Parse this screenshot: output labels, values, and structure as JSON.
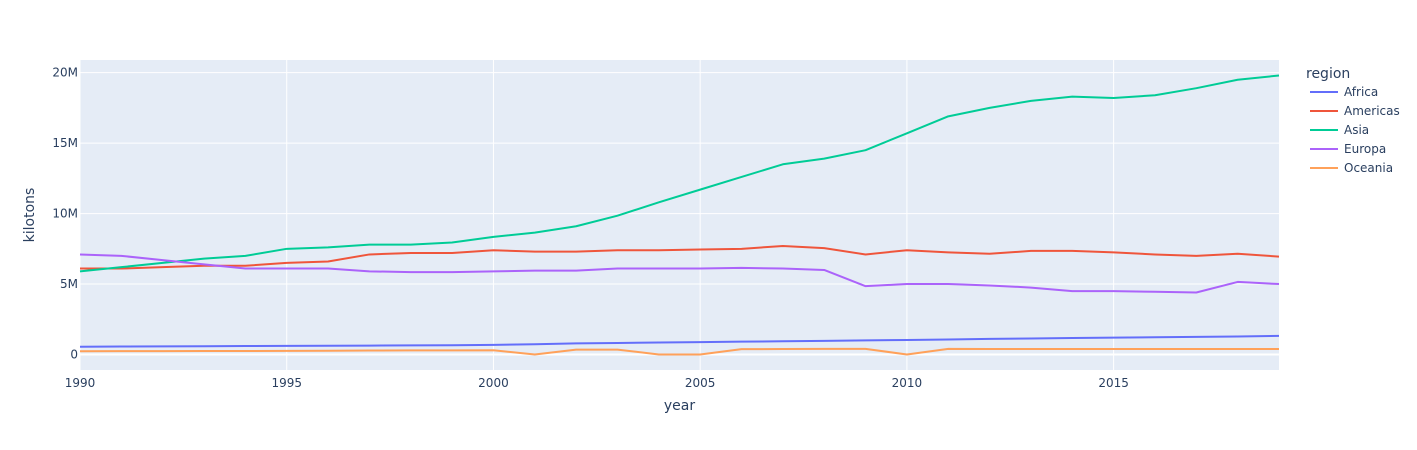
{
  "chart_data": {
    "type": "line",
    "xlabel": "year",
    "ylabel": "kilotons",
    "xlim": [
      1990,
      2019
    ],
    "ylim": [
      -1100000,
      20900000
    ],
    "x_ticks": [
      1990,
      1995,
      2000,
      2005,
      2010,
      2015
    ],
    "x_tick_labels": [
      "1990",
      "1995",
      "2000",
      "2005",
      "2010",
      "2015"
    ],
    "y_ticks": [
      0,
      5000000,
      10000000,
      15000000,
      20000000
    ],
    "y_tick_labels": [
      "0",
      "5M",
      "10M",
      "15M",
      "20M"
    ],
    "grid": true,
    "legend": {
      "title": "region",
      "placement": "right"
    },
    "x": [
      1990,
      1991,
      1992,
      1993,
      1994,
      1995,
      1996,
      1997,
      1998,
      1999,
      2000,
      2001,
      2002,
      2003,
      2004,
      2005,
      2006,
      2007,
      2008,
      2009,
      2010,
      2011,
      2012,
      2013,
      2014,
      2015,
      2016,
      2017,
      2018,
      2019
    ],
    "series": [
      {
        "name": "Africa",
        "color": "#636efa",
        "values": [
          550000,
          570000,
          580000,
          590000,
          600000,
          610000,
          620000,
          630000,
          650000,
          660000,
          680000,
          730000,
          790000,
          820000,
          850000,
          880000,
          910000,
          940000,
          970000,
          1000000,
          1030000,
          1060000,
          1110000,
          1140000,
          1170000,
          1200000,
          1220000,
          1250000,
          1280000,
          1320000
        ]
      },
      {
        "name": "Americas",
        "color": "#ef553b",
        "values": [
          6100000,
          6100000,
          6200000,
          6300000,
          6300000,
          6500000,
          6600000,
          7100000,
          7200000,
          7200000,
          7400000,
          7300000,
          7300000,
          7400000,
          7400000,
          7450000,
          7500000,
          7700000,
          7550000,
          7100000,
          7400000,
          7250000,
          7150000,
          7350000,
          7350000,
          7250000,
          7100000,
          7000000,
          7150000,
          6950000
        ]
      },
      {
        "name": "Asia",
        "color": "#00cc96",
        "values": [
          5900000,
          6200000,
          6500000,
          6800000,
          7000000,
          7500000,
          7600000,
          7800000,
          7800000,
          7950000,
          8350000,
          8650000,
          9100000,
          9850000,
          10800000,
          11700000,
          12600000,
          13500000,
          13900000,
          14500000,
          15700000,
          16900000,
          17500000,
          18000000,
          18300000,
          18200000,
          18400000,
          18900000,
          19500000,
          19800000
        ]
      },
      {
        "name": "Europa",
        "color": "#ab63fa",
        "values": [
          7100000,
          7000000,
          6700000,
          6400000,
          6100000,
          6100000,
          6100000,
          5900000,
          5850000,
          5850000,
          5900000,
          5950000,
          5950000,
          6100000,
          6100000,
          6100000,
          6150000,
          6100000,
          6000000,
          4850000,
          5000000,
          5000000,
          4900000,
          4750000,
          4500000,
          4500000,
          4450000,
          4400000,
          5150000,
          5000000
        ]
      },
      {
        "name": "Oceania",
        "color": "#ffa15a",
        "values": [
          230000,
          240000,
          240000,
          250000,
          250000,
          260000,
          270000,
          280000,
          290000,
          290000,
          300000,
          0,
          350000,
          350000,
          0,
          0,
          380000,
          390000,
          400000,
          400000,
          0,
          400000,
          390000,
          390000,
          390000,
          390000,
          390000,
          390000,
          390000,
          390000
        ]
      }
    ]
  }
}
